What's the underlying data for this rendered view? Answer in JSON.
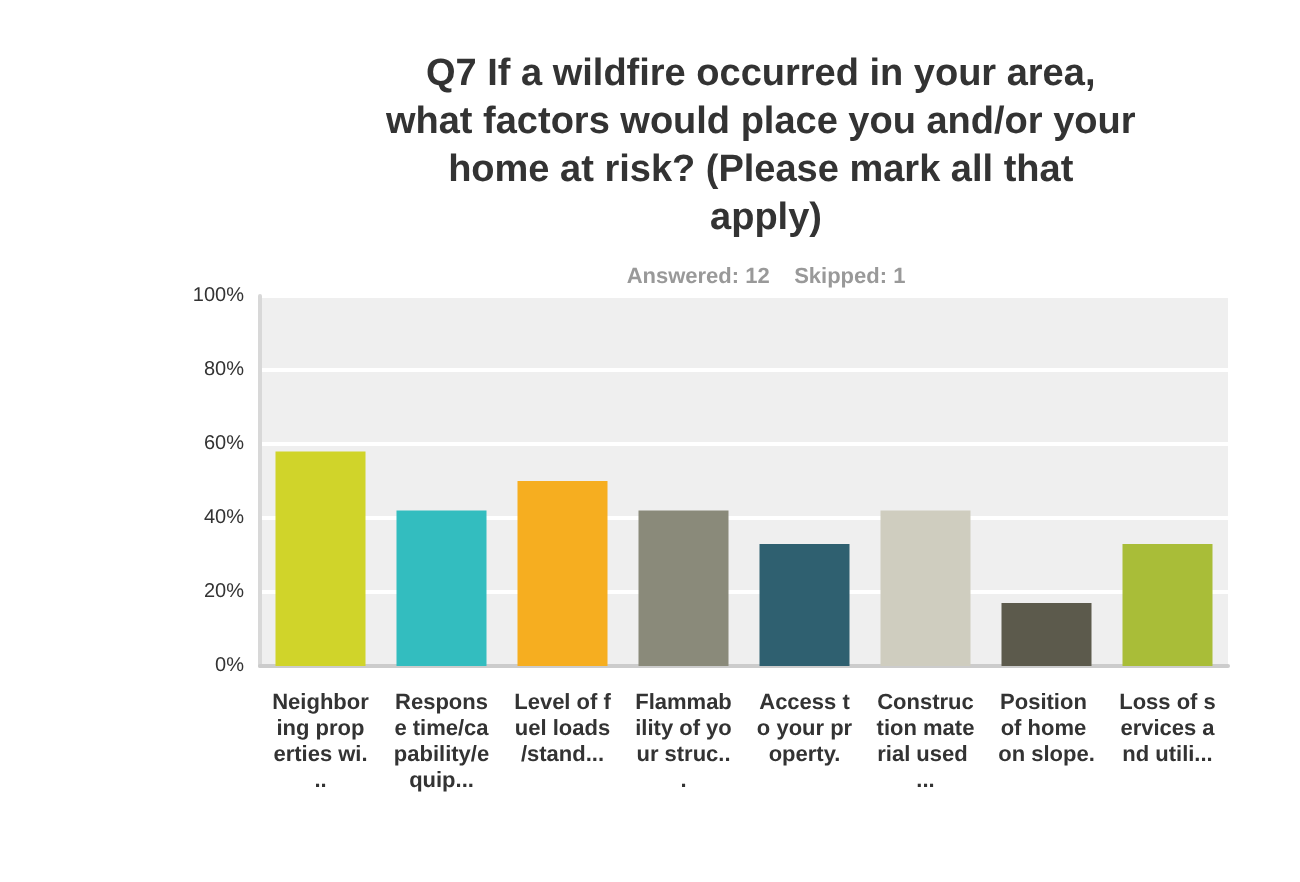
{
  "chart_data": {
    "type": "bar",
    "title": "Q7 If a wildfire occurred in your area, what factors would place you and/or your home at risk? (Please mark all that apply)",
    "subtitle": "Answered: 12    Skipped: 1",
    "categories": [
      "Neighboring properties wi...",
      "Response time/capability/equip...",
      "Level of fuel loads/stand...",
      "Flammability of your struc...",
      "Access to your property.",
      "Construction material used ...",
      "Position of home on slope.",
      "Loss of services and utili..."
    ],
    "values": [
      58,
      42,
      50,
      42,
      33,
      42,
      17,
      33
    ],
    "colors": [
      "#d0d42a",
      "#33bdbf",
      "#f6ae20",
      "#8a8a7a",
      "#2f6070",
      "#cfcdbf",
      "#5c5a4c",
      "#a9bd38"
    ],
    "ylim": [
      0,
      100
    ],
    "yticks": [
      {
        "value": 0,
        "label": "0%"
      },
      {
        "value": 20,
        "label": "20%"
      },
      {
        "value": 40,
        "label": "40%"
      },
      {
        "value": 60,
        "label": "60%"
      },
      {
        "value": 80,
        "label": "80%"
      },
      {
        "value": 100,
        "label": "100%"
      }
    ],
    "grid": "y"
  }
}
